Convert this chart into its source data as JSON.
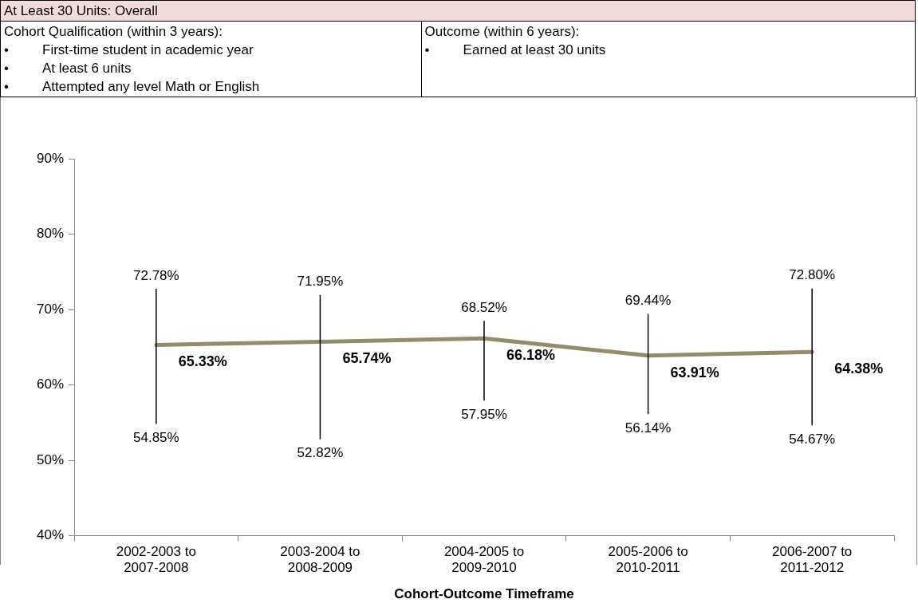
{
  "chart_data": {
    "type": "line",
    "title": "At Least 30 Units: Overall",
    "categories": [
      "2002-2003 to 2007-2008",
      "2003-2004 to 2008-2009",
      "2004-2005 to 2009-2010",
      "2005-2006 to 2010-2011",
      "2006-2007 to 2011-2012"
    ],
    "series": [
      {
        "color": "#948a6e",
        "values": [
          65.33,
          65.74,
          66.18,
          63.91,
          64.38
        ],
        "value_labels": [
          "65.33%",
          "65.74%",
          "66.18%",
          "63.91%",
          "64.38%"
        ],
        "errors": [
          [
            54.85,
            72.78
          ],
          [
            52.82,
            71.95
          ],
          [
            57.95,
            68.52
          ],
          [
            56.14,
            69.44
          ],
          [
            54.67,
            72.8
          ]
        ]
      }
    ],
    "xlabel": "Cohort-Outcome Timeframe",
    "ylim": [
      40,
      90
    ],
    "yticks": [
      {
        "value": 40,
        "label": "40%"
      },
      {
        "value": 50,
        "label": "50%"
      },
      {
        "value": 60,
        "label": "60%"
      },
      {
        "value": 70,
        "label": "70%"
      },
      {
        "value": 80,
        "label": "80%"
      },
      {
        "value": 90,
        "label": "90%"
      }
    ],
    "marker": "none",
    "annotations": [
      "Cohort Qualification (within 3 years):\n•\tFirst-time student in academic year\n•\tAt least 6 units\n•\tAttempted any level Math or English",
      "Outcome (within 6 years):\n•\tEarned at least 30 units",
      {
        "text": "72.78%",
        "x": "2002-2003 to 2007-2008",
        "y": 72.78
      },
      {
        "text": "54.85%",
        "x": "2002-2003 to 2007-2008",
        "y": 54.85
      },
      {
        "text": "71.95%",
        "x": "2003-2004 to 2008-2009",
        "y": 71.95
      },
      {
        "text": "52.82%",
        "x": "2003-2004 to 2008-2009",
        "y": 52.82
      },
      {
        "text": "68.52%",
        "x": "2004-2005 to 2009-2010",
        "y": 68.52
      },
      {
        "text": "57.95%",
        "x": "2004-2005 to 2009-2010",
        "y": 57.95
      },
      {
        "text": "69.44%",
        "x": "2005-2006 to 2010-2011",
        "y": 69.44
      },
      {
        "text": "56.14%",
        "x": "2005-2006 to 2010-2011",
        "y": 56.14
      },
      {
        "text": "72.80%",
        "x": "2006-2007 to 2011-2012",
        "y": 72.8
      },
      {
        "text": "54.67%",
        "x": "2006-2007 to 2011-2012",
        "y": 54.67
      }
    ]
  }
}
